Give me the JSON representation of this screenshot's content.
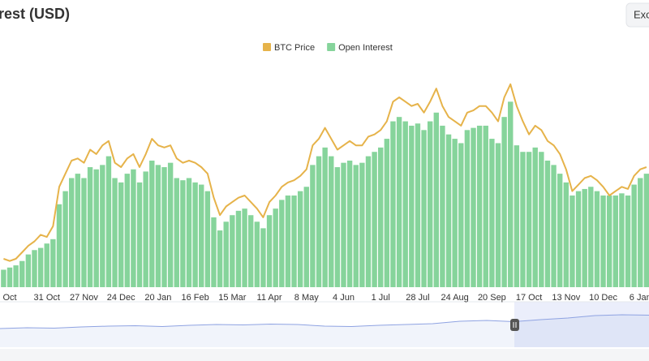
{
  "chart_data": {
    "type": "combo",
    "title": "rest (USD)",
    "button": "Exc",
    "categories": [
      null,
      "Oct",
      null,
      null,
      null,
      null,
      null,
      "31 Oct",
      null,
      null,
      null,
      null,
      null,
      "27 Nov",
      null,
      null,
      null,
      null,
      null,
      "24 Dec",
      null,
      null,
      null,
      null,
      null,
      "20 Jan",
      null,
      null,
      null,
      null,
      null,
      "16 Feb",
      null,
      null,
      null,
      null,
      null,
      "15 Mar",
      null,
      null,
      null,
      null,
      null,
      "11 Apr",
      null,
      null,
      null,
      null,
      null,
      "8 May",
      null,
      null,
      null,
      null,
      null,
      "4 Jun",
      null,
      null,
      null,
      null,
      null,
      "1 Jul",
      null,
      null,
      null,
      null,
      null,
      "28 Jul",
      null,
      null,
      null,
      null,
      null,
      "24 Aug",
      null,
      null,
      null,
      null,
      null,
      "20 Sep",
      null,
      null,
      null,
      null,
      null,
      "17 Oct",
      null,
      null,
      null,
      null,
      null,
      "13 Nov",
      null,
      null,
      null,
      null,
      null,
      "10 Dec",
      null,
      null,
      null,
      null,
      null,
      "6 Jan",
      null
    ],
    "series": [
      {
        "name": "BTC Price",
        "type": "line",
        "color": "#e6b34a",
        "values": [
          13,
          12,
          13,
          16,
          19,
          21,
          24,
          23,
          28,
          46,
          52,
          58,
          59,
          57,
          63,
          61,
          65,
          67,
          57,
          55,
          59,
          61,
          55,
          61,
          68,
          65,
          64,
          65,
          59,
          57,
          58,
          57,
          55,
          52,
          41,
          33,
          37,
          39,
          41,
          42,
          39,
          36,
          32,
          39,
          42,
          46,
          48,
          49,
          51,
          54,
          65,
          68,
          73,
          68,
          63,
          65,
          67,
          65,
          65,
          69,
          70,
          72,
          76,
          85,
          87,
          85,
          83,
          84,
          80,
          85,
          91,
          83,
          78,
          76,
          74,
          80,
          81,
          83,
          83,
          80,
          76,
          87,
          93,
          83,
          76,
          70,
          74,
          72,
          67,
          65,
          61,
          54,
          44,
          47,
          50,
          51,
          49,
          46,
          42,
          44,
          46,
          45,
          51,
          54,
          55
        ]
      },
      {
        "name": "Open Interest",
        "type": "bar",
        "color": "#86d49b",
        "values": [
          8,
          9,
          10,
          12,
          15,
          17,
          18,
          20,
          22,
          38,
          44,
          50,
          52,
          50,
          55,
          54,
          56,
          60,
          50,
          48,
          52,
          54,
          48,
          53,
          58,
          56,
          55,
          57,
          50,
          49,
          50,
          48,
          47,
          44,
          32,
          26,
          30,
          33,
          35,
          36,
          33,
          30,
          27,
          33,
          36,
          40,
          42,
          42,
          44,
          46,
          56,
          60,
          64,
          60,
          55,
          57,
          58,
          56,
          57,
          60,
          62,
          64,
          68,
          76,
          78,
          76,
          74,
          75,
          72,
          76,
          80,
          74,
          70,
          68,
          66,
          72,
          73,
          74,
          74,
          68,
          66,
          78,
          85,
          65,
          62,
          62,
          64,
          62,
          58,
          56,
          52,
          48,
          42,
          44,
          45,
          46,
          44,
          42,
          42,
          42,
          43,
          42,
          47,
          50,
          52
        ]
      }
    ],
    "ylim": [
      0,
      100
    ],
    "navigator": {
      "color": "#8fa3e2",
      "ylim": [
        0,
        100
      ],
      "values": [
        40,
        42,
        41,
        44,
        46,
        47,
        45,
        48,
        50,
        49,
        51,
        50,
        46,
        45,
        48,
        50,
        52,
        58,
        60,
        57,
        62,
        66,
        72,
        74,
        73
      ]
    }
  }
}
